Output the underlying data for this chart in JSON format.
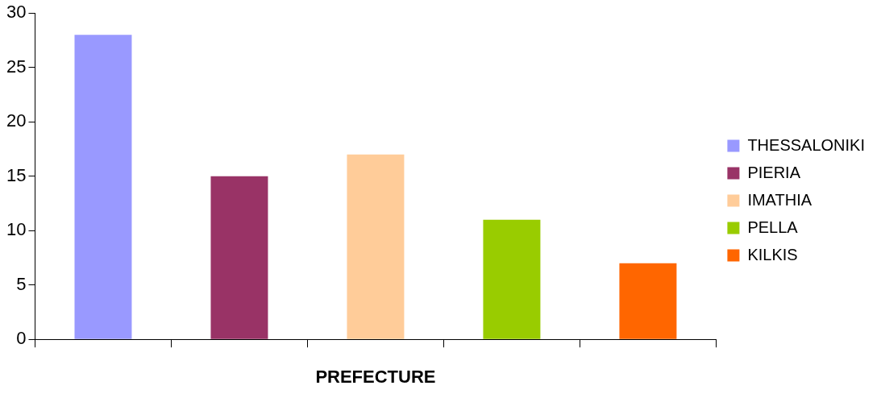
{
  "chart_data": {
    "type": "bar",
    "xlabel": "PREFECTURE",
    "categories": [
      null,
      null,
      null,
      null,
      null
    ],
    "series": [
      {
        "name": "THESSALONIKI",
        "color": "#9999ff",
        "values": [
          28,
          null,
          null,
          null,
          null
        ]
      },
      {
        "name": "PIERIA",
        "color": "#993366",
        "values": [
          null,
          15,
          null,
          null,
          null
        ]
      },
      {
        "name": "IMATHIA",
        "color": "#ffcc99",
        "values": [
          null,
          null,
          17,
          null,
          null
        ]
      },
      {
        "name": "PELLA",
        "color": "#99cc00",
        "values": [
          null,
          null,
          null,
          11,
          null
        ]
      },
      {
        "name": "KILKIS",
        "color": "#ff6600",
        "values": [
          null,
          null,
          null,
          null,
          7
        ]
      }
    ],
    "ylim": [
      0,
      30
    ],
    "yticks": [
      0,
      5,
      10,
      15,
      20,
      25,
      30
    ],
    "grid": false,
    "legend": "right"
  }
}
